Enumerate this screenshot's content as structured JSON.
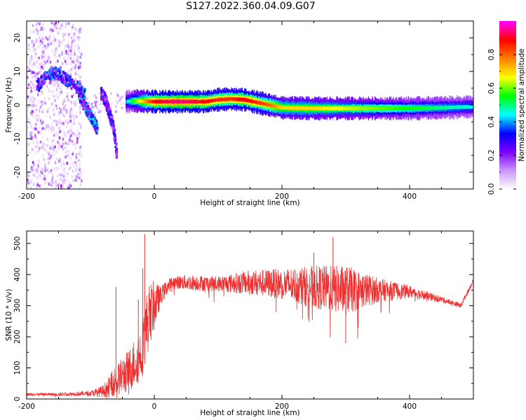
{
  "title": "S127.2022.360.04.09.G07",
  "chart_data": [
    {
      "type": "heatmap",
      "xlabel": "Height of straight line (km)",
      "ylabel": "Frequency (Hz)",
      "xlim": [
        -200,
        500
      ],
      "ylim": [
        -25,
        25
      ],
      "x_ticks": [
        -200,
        0,
        200,
        400
      ],
      "y_ticks": [
        -20,
        -10,
        0,
        10,
        20
      ],
      "colorbar": {
        "label": "Normalized spectral amplitude",
        "range": [
          0,
          1
        ],
        "ticks": [
          0.0,
          0.2,
          0.4,
          0.6,
          0.8
        ],
        "colormap": [
          "#ffffff",
          "#cc99ff",
          "#7f00ff",
          "#0000ff",
          "#00ffff",
          "#00ff00",
          "#ffff00",
          "#ff8000",
          "#ff0000",
          "#ff00ff"
        ]
      },
      "ridge": {
        "x": [
          -45,
          -30,
          0,
          40,
          80,
          100,
          120,
          140,
          160,
          180,
          200,
          250,
          300,
          350,
          400,
          450,
          500
        ],
        "freq": [
          1.0,
          1.2,
          1.0,
          1.0,
          1.0,
          1.6,
          1.8,
          1.6,
          0.8,
          0.0,
          -0.8,
          -1.0,
          -1.0,
          -1.0,
          -1.0,
          -0.8,
          -0.5
        ],
        "amplitude": [
          0.4,
          0.6,
          0.9,
          0.95,
          0.9,
          0.85,
          0.85,
          0.9,
          0.85,
          0.8,
          0.7,
          0.7,
          0.65,
          0.6,
          0.55,
          0.5,
          0.45
        ]
      },
      "scattered_tracks": [
        {
          "x": [
            -185,
            -170,
            -155,
            -140,
            -125,
            -110
          ],
          "freq": [
            6,
            9,
            10,
            8,
            6,
            4
          ],
          "amplitude": 0.3
        },
        {
          "x": [
            -120,
            -110,
            -100,
            -95,
            -90
          ],
          "freq": [
            4,
            0,
            -3,
            -5,
            -7
          ],
          "amplitude": 0.35
        },
        {
          "x": [
            -85,
            -78,
            -72,
            -66,
            -62,
            -60
          ],
          "freq": [
            4,
            2,
            -2,
            -6,
            -11,
            -15
          ],
          "amplitude": 0.25
        }
      ]
    },
    {
      "type": "line",
      "xlabel": "Height of straight line (km)",
      "ylabel": "SNR (10 * v/v)",
      "xlim": [
        -200,
        500
      ],
      "ylim": [
        0,
        540
      ],
      "x_ticks": [
        -200,
        0,
        200,
        400
      ],
      "y_ticks": [
        0,
        100,
        200,
        300,
        400,
        500
      ],
      "series": [
        {
          "color": "#f03030",
          "x": [
            -200,
            -150,
            -100,
            -80,
            -60,
            -40,
            -20,
            -10,
            0,
            10,
            20,
            30,
            50,
            100,
            150,
            200,
            250,
            300,
            350,
            400,
            450,
            480,
            500
          ],
          "y": [
            15,
            15,
            18,
            25,
            60,
            90,
            150,
            260,
            300,
            330,
            360,
            375,
            375,
            370,
            375,
            370,
            360,
            350,
            350,
            345,
            320,
            300,
            380
          ],
          "noise": [
            4,
            5,
            8,
            20,
            50,
            70,
            90,
            110,
            80,
            30,
            25,
            20,
            25,
            25,
            40,
            50,
            70,
            80,
            40,
            20,
            10,
            8,
            6
          ],
          "spikes": [
            [
              -15,
              530
            ],
            [
              -60,
              360
            ],
            [
              -25,
              320
            ],
            [
              -18,
              420
            ],
            [
              280,
              520
            ],
            [
              250,
              470
            ],
            [
              300,
              180
            ]
          ]
        }
      ]
    }
  ]
}
